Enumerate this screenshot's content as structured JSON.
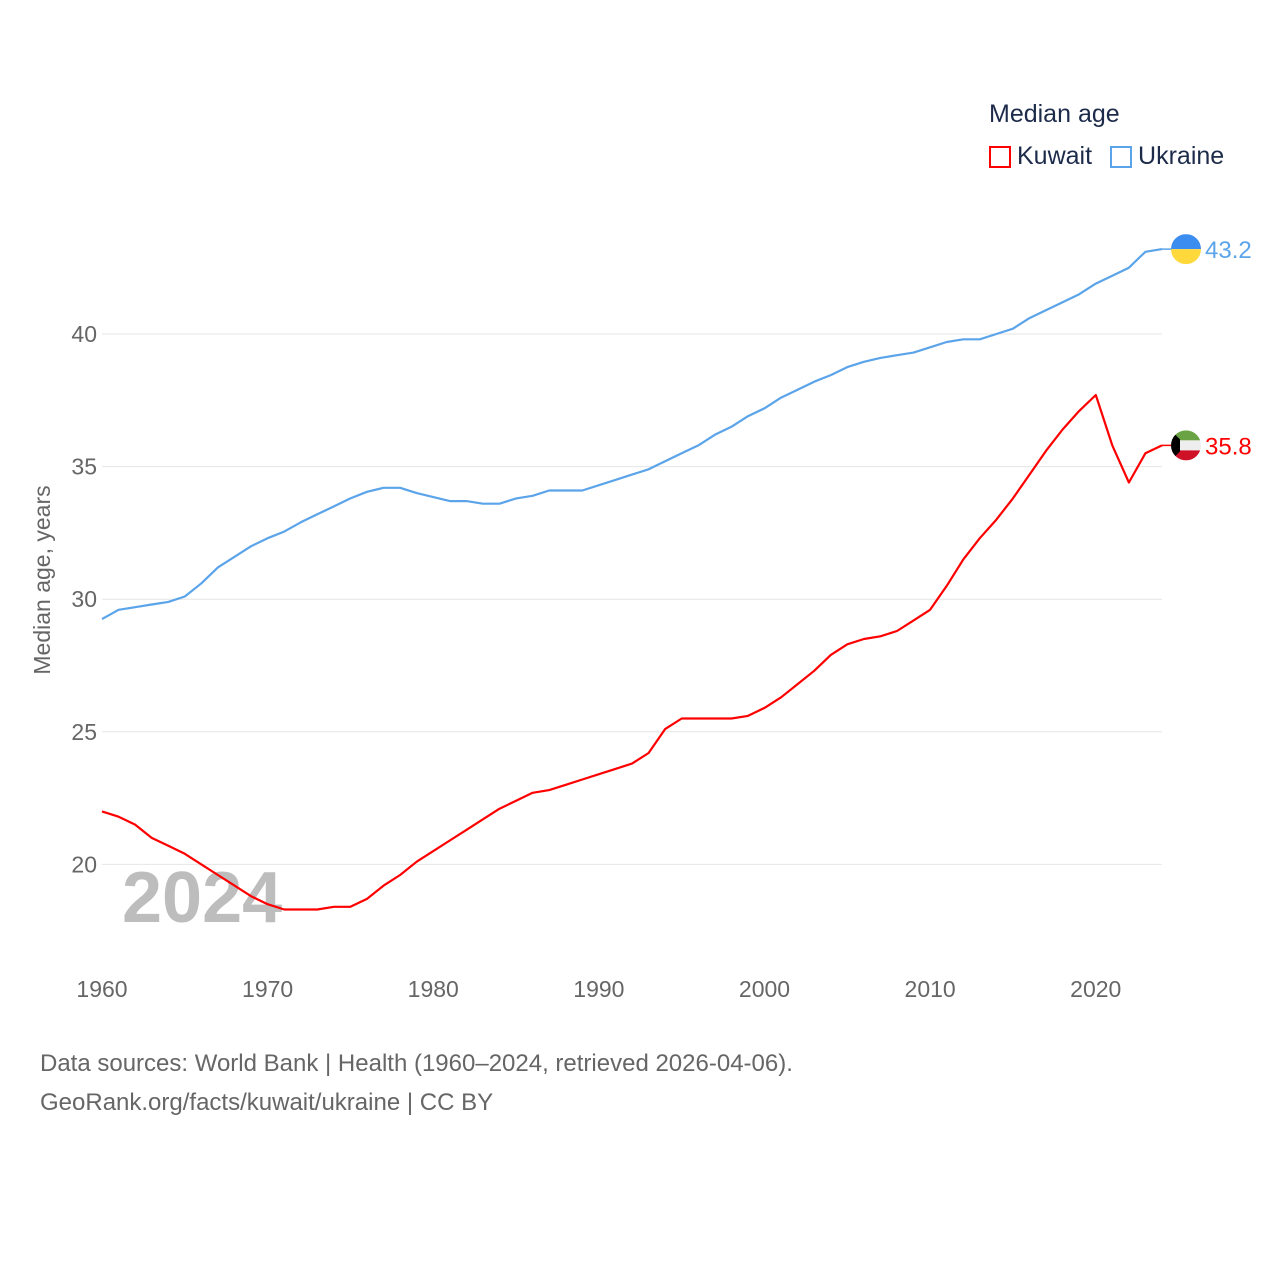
{
  "chart_data": {
    "type": "line",
    "title": "Median age",
    "ylabel": "Median age, years",
    "xlabel": "",
    "ylim": [
      17,
      44.5
    ],
    "xlim": [
      1960,
      2024
    ],
    "yticks": [
      20,
      25,
      30,
      35,
      40
    ],
    "xticks": [
      1960,
      1970,
      1980,
      1990,
      2000,
      2010,
      2020
    ],
    "grid": true,
    "legend_placement": "top-right",
    "year_watermark": "2024",
    "x": [
      1960,
      1961,
      1962,
      1963,
      1964,
      1965,
      1966,
      1967,
      1968,
      1969,
      1970,
      1971,
      1972,
      1973,
      1974,
      1975,
      1976,
      1977,
      1978,
      1979,
      1980,
      1981,
      1982,
      1983,
      1984,
      1985,
      1986,
      1987,
      1988,
      1989,
      1990,
      1991,
      1992,
      1993,
      1994,
      1995,
      1996,
      1997,
      1998,
      1999,
      2000,
      2001,
      2002,
      2003,
      2004,
      2005,
      2006,
      2007,
      2008,
      2009,
      2010,
      2011,
      2012,
      2013,
      2014,
      2015,
      2016,
      2017,
      2018,
      2019,
      2020,
      2021,
      2022,
      2023,
      2024
    ],
    "series": [
      {
        "name": "Kuwait",
        "color": "#ff0000",
        "end_label": "35.8",
        "values": [
          22.0,
          21.8,
          21.5,
          21.0,
          20.7,
          20.4,
          20.0,
          19.6,
          19.2,
          18.8,
          18.5,
          18.3,
          18.3,
          18.3,
          18.4,
          18.4,
          18.7,
          19.2,
          19.6,
          20.1,
          20.5,
          20.9,
          21.3,
          21.7,
          22.1,
          22.4,
          22.7,
          22.8,
          23.0,
          23.2,
          23.4,
          23.6,
          23.8,
          24.2,
          25.1,
          25.5,
          25.5,
          25.5,
          25.5,
          25.6,
          25.9,
          26.3,
          26.8,
          27.3,
          27.9,
          28.3,
          28.5,
          28.6,
          28.8,
          29.2,
          29.6,
          30.5,
          31.5,
          32.3,
          33.0,
          33.8,
          34.7,
          35.6,
          36.4,
          37.1,
          37.7,
          35.8,
          34.4,
          35.5,
          35.8
        ]
      },
      {
        "name": "Ukraine",
        "color": "#5ba4ea",
        "end_label": "43.2",
        "values": [
          29.25,
          29.6,
          29.7,
          29.8,
          29.9,
          30.1,
          30.6,
          31.2,
          31.6,
          32.0,
          32.3,
          32.55,
          32.9,
          33.2,
          33.5,
          33.8,
          34.05,
          34.2,
          34.2,
          34.0,
          33.85,
          33.7,
          33.7,
          33.6,
          33.6,
          33.8,
          33.9,
          34.1,
          34.1,
          34.1,
          34.3,
          34.5,
          34.7,
          34.9,
          35.2,
          35.5,
          35.8,
          36.2,
          36.5,
          36.9,
          37.2,
          37.6,
          37.9,
          38.2,
          38.45,
          38.75,
          38.95,
          39.1,
          39.2,
          39.3,
          39.5,
          39.7,
          39.8,
          39.8,
          40.0,
          40.2,
          40.6,
          40.9,
          41.2,
          41.5,
          41.9,
          42.2,
          42.5,
          43.1,
          43.2
        ]
      }
    ]
  },
  "footer": {
    "line1": "Data sources: World Bank | Health (1960–2024, retrieved 2026-04-06).",
    "line2": "GeoRank.org/facts/kuwait/ukraine | CC BY"
  }
}
